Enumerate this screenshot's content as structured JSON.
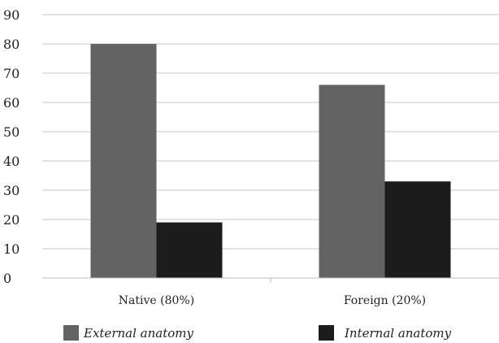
{
  "chart_data": {
    "type": "bar",
    "title": "",
    "xlabel": "",
    "ylabel": "",
    "categories": [
      "Native (80%)",
      "Foreign (20%)"
    ],
    "series": [
      {
        "name": "External anatomy",
        "values": [
          80,
          66
        ],
        "color": "#636363"
      },
      {
        "name": "Internal anatomy",
        "values": [
          19,
          33
        ],
        "color": "#1c1c1c"
      }
    ],
    "ylim": [
      0,
      90
    ],
    "yticks": [
      0,
      10,
      20,
      30,
      40,
      50,
      60,
      70,
      80,
      90
    ],
    "grid": true,
    "legend": "bottom"
  }
}
